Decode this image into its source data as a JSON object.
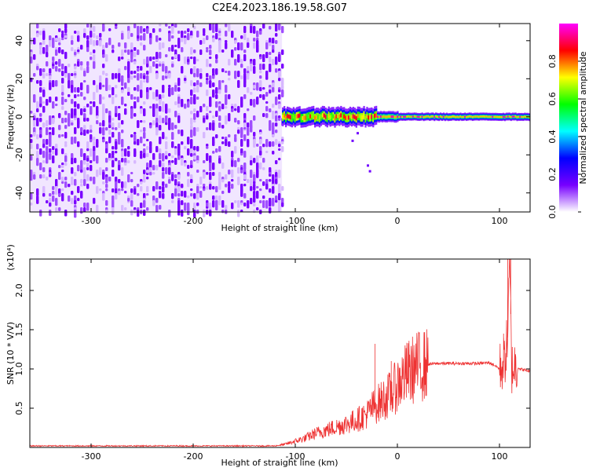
{
  "title": "C2E4.2023.186.19.58.G07",
  "chart_data": [
    {
      "type": "heatmap",
      "title": "C2E4.2023.186.19.58.G07",
      "xlabel": "Height of straight line (km)",
      "ylabel": "Frequency (Hz)",
      "xlim": [
        -360,
        130
      ],
      "ylim": [
        -50,
        49
      ],
      "xticks": [
        -300,
        -200,
        -100,
        0,
        100
      ],
      "yticks": [
        -40,
        -20,
        0,
        20,
        40
      ],
      "noise_region_x": [
        -360,
        -113
      ],
      "signal_region_x": [
        -113,
        130
      ],
      "signal_center_freq": 0,
      "colorbar": {
        "label": "Normalized spectral amplitude",
        "range": [
          0.0,
          1.0
        ],
        "ticks": [
          0.0,
          0.2,
          0.4,
          0.6,
          0.8
        ],
        "colors": [
          "#ffffff",
          "#7700ff",
          "#0000ff",
          "#00ffff",
          "#00ff00",
          "#ffff00",
          "#ff0000",
          "#ff00ff"
        ]
      }
    },
    {
      "type": "line",
      "xlabel": "Height of straight line (km)",
      "ylabel": "SNR (10 * V/V)",
      "y_multiplier": "(x10⁴)",
      "xlim": [
        -360,
        130
      ],
      "ylim": [
        0,
        2.4
      ],
      "xticks": [
        -300,
        -200,
        -100,
        0,
        100
      ],
      "yticks": [
        0.5,
        1.0,
        1.5,
        2.0
      ],
      "series_color": "#ee3333",
      "x": [
        -360,
        -120,
        -110,
        -100,
        -90,
        -80,
        -70,
        -60,
        -50,
        -40,
        -30,
        -25,
        -20,
        -15,
        -10,
        -5,
        0,
        10,
        20,
        30,
        40,
        50,
        60,
        70,
        80,
        90,
        95,
        100,
        105,
        108,
        110,
        112,
        115,
        120,
        130
      ],
      "y": [
        0.02,
        0.02,
        0.04,
        0.08,
        0.12,
        0.18,
        0.22,
        0.26,
        0.3,
        0.35,
        0.42,
        0.5,
        0.55,
        0.6,
        0.65,
        0.7,
        0.8,
        0.95,
        1.03,
        1.06,
        1.07,
        1.07,
        1.07,
        1.07,
        1.07,
        1.08,
        1.05,
        1.0,
        1.1,
        1.4,
        2.4,
        1.0,
        1.05,
        1.0,
        0.97
      ]
    }
  ]
}
